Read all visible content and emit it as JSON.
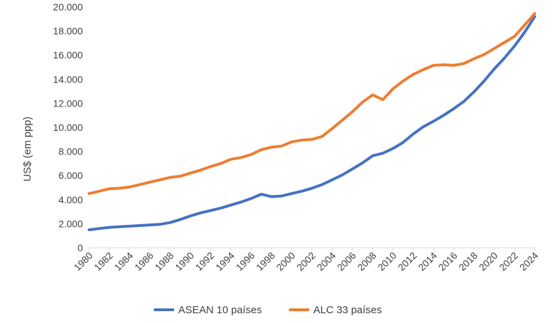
{
  "chart_data": {
    "type": "line",
    "title": "",
    "xlabel": "",
    "ylabel": "US$ (em ppp)",
    "ylim": [
      0,
      20000
    ],
    "yticks": [
      0,
      2000,
      4000,
      6000,
      8000,
      10000,
      12000,
      14000,
      16000,
      18000,
      20000
    ],
    "ytick_labels": [
      "0",
      "2.000",
      "4.000",
      "6.000",
      "8.000",
      "10.000",
      "12.000",
      "14.000",
      "16.000",
      "18.000",
      "20.000"
    ],
    "xlim": [
      1980,
      2024
    ],
    "xticks": [
      "1980",
      "1982",
      "1984",
      "1986",
      "1988",
      "1990",
      "1992",
      "1994",
      "1996",
      "1998",
      "2000",
      "2002",
      "2004",
      "2006",
      "2008",
      "2010",
      "2012",
      "2014",
      "2016",
      "2018",
      "2020",
      "2022",
      "2024"
    ],
    "grid": false,
    "legend_position": "bottom",
    "x": [
      1980,
      1981,
      1982,
      1983,
      1984,
      1985,
      1986,
      1987,
      1988,
      1989,
      1990,
      1991,
      1992,
      1993,
      1994,
      1995,
      1996,
      1997,
      1998,
      1999,
      2000,
      2001,
      2002,
      2003,
      2004,
      2005,
      2006,
      2007,
      2008,
      2009,
      2010,
      2011,
      2012,
      2013,
      2014,
      2015,
      2016,
      2017,
      2018,
      2019,
      2020,
      2021,
      2022,
      2023,
      2024
    ],
    "series": [
      {
        "name": "ASEAN 10 países",
        "color": "#4472c4",
        "values": [
          1500,
          1600,
          1700,
          1750,
          1800,
          1850,
          1900,
          1950,
          2100,
          2350,
          2650,
          2900,
          3100,
          3300,
          3550,
          3800,
          4100,
          4450,
          4250,
          4300,
          4500,
          4700,
          4950,
          5250,
          5650,
          6050,
          6550,
          7050,
          7650,
          7850,
          8250,
          8750,
          9450,
          10050,
          10500,
          11000,
          11550,
          12150,
          12950,
          13850,
          14850,
          15750,
          16750,
          17900,
          19200
        ]
      },
      {
        "name": "ALC 33 países",
        "color": "#ed7d31",
        "values": [
          4500,
          4700,
          4900,
          4950,
          5050,
          5250,
          5450,
          5650,
          5850,
          5950,
          6200,
          6450,
          6750,
          7000,
          7350,
          7500,
          7750,
          8150,
          8350,
          8450,
          8800,
          8950,
          9000,
          9250,
          9900,
          10600,
          11300,
          12100,
          12700,
          12300,
          13200,
          13850,
          14400,
          14800,
          15150,
          15200,
          15150,
          15300,
          15700,
          16050,
          16550,
          17050,
          17550,
          18500,
          19450
        ]
      }
    ]
  }
}
